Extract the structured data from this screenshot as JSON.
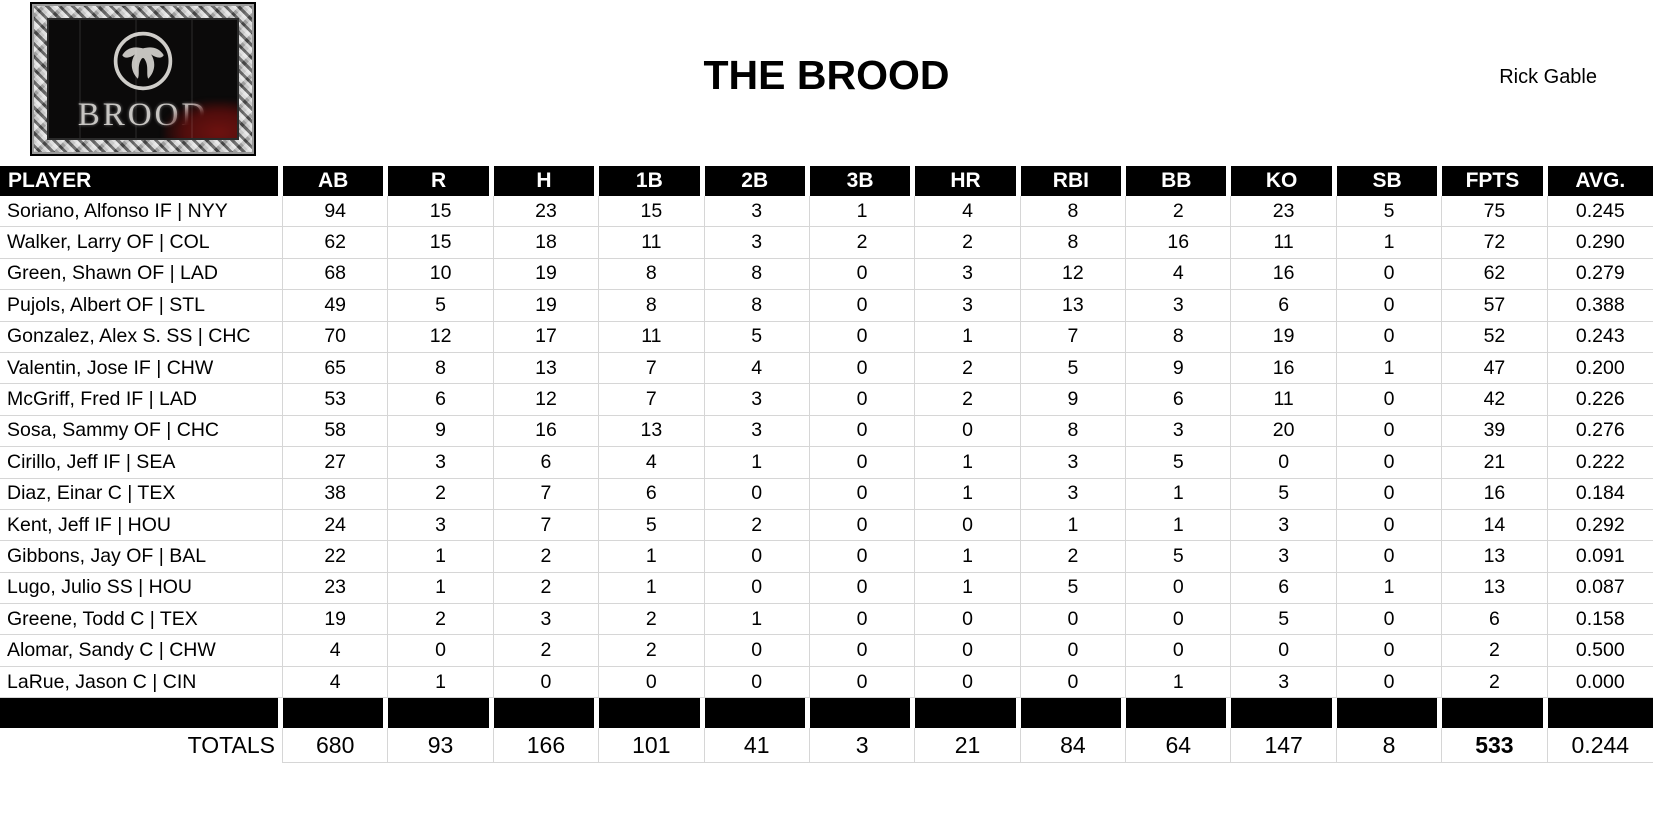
{
  "header": {
    "title": "THE BROOD",
    "owner": "Rick Gable"
  },
  "logo": {
    "label": "BROOD",
    "emblem_icon": "brood-claw-icon"
  },
  "table": {
    "columns": [
      "PLAYER",
      "AB",
      "R",
      "H",
      "1B",
      "2B",
      "3B",
      "HR",
      "RBI",
      "BB",
      "KO",
      "SB",
      "FPTS",
      "AVG."
    ],
    "rows": [
      {
        "player": "Soriano, Alfonso IF | NYY",
        "stats": [
          "94",
          "15",
          "23",
          "15",
          "3",
          "1",
          "4",
          "8",
          "2",
          "23",
          "5",
          "75",
          "0.245"
        ]
      },
      {
        "player": "Walker, Larry OF | COL",
        "stats": [
          "62",
          "15",
          "18",
          "11",
          "3",
          "2",
          "2",
          "8",
          "16",
          "11",
          "1",
          "72",
          "0.290"
        ]
      },
      {
        "player": "Green, Shawn OF | LAD",
        "stats": [
          "68",
          "10",
          "19",
          "8",
          "8",
          "0",
          "3",
          "12",
          "4",
          "16",
          "0",
          "62",
          "0.279"
        ]
      },
      {
        "player": "Pujols, Albert OF | STL",
        "stats": [
          "49",
          "5",
          "19",
          "8",
          "8",
          "0",
          "3",
          "13",
          "3",
          "6",
          "0",
          "57",
          "0.388"
        ]
      },
      {
        "player": "Gonzalez, Alex S. SS | CHC",
        "stats": [
          "70",
          "12",
          "17",
          "11",
          "5",
          "0",
          "1",
          "7",
          "8",
          "19",
          "0",
          "52",
          "0.243"
        ]
      },
      {
        "player": "Valentin, Jose IF | CHW",
        "stats": [
          "65",
          "8",
          "13",
          "7",
          "4",
          "0",
          "2",
          "5",
          "9",
          "16",
          "1",
          "47",
          "0.200"
        ]
      },
      {
        "player": "McGriff, Fred IF | LAD",
        "stats": [
          "53",
          "6",
          "12",
          "7",
          "3",
          "0",
          "2",
          "9",
          "6",
          "11",
          "0",
          "42",
          "0.226"
        ]
      },
      {
        "player": "Sosa, Sammy OF | CHC",
        "stats": [
          "58",
          "9",
          "16",
          "13",
          "3",
          "0",
          "0",
          "8",
          "3",
          "20",
          "0",
          "39",
          "0.276"
        ]
      },
      {
        "player": "Cirillo, Jeff IF | SEA",
        "stats": [
          "27",
          "3",
          "6",
          "4",
          "1",
          "0",
          "1",
          "3",
          "5",
          "0",
          "0",
          "21",
          "0.222"
        ]
      },
      {
        "player": "Diaz, Einar C | TEX",
        "stats": [
          "38",
          "2",
          "7",
          "6",
          "0",
          "0",
          "1",
          "3",
          "1",
          "5",
          "0",
          "16",
          "0.184"
        ]
      },
      {
        "player": "Kent, Jeff IF | HOU",
        "stats": [
          "24",
          "3",
          "7",
          "5",
          "2",
          "0",
          "0",
          "1",
          "1",
          "3",
          "0",
          "14",
          "0.292"
        ]
      },
      {
        "player": "Gibbons, Jay OF | BAL",
        "stats": [
          "22",
          "1",
          "2",
          "1",
          "0",
          "0",
          "1",
          "2",
          "5",
          "3",
          "0",
          "13",
          "0.091"
        ]
      },
      {
        "player": "Lugo, Julio SS | HOU",
        "stats": [
          "23",
          "1",
          "2",
          "1",
          "0",
          "0",
          "1",
          "5",
          "0",
          "6",
          "1",
          "13",
          "0.087"
        ]
      },
      {
        "player": "Greene, Todd C | TEX",
        "stats": [
          "19",
          "2",
          "3",
          "2",
          "1",
          "0",
          "0",
          "0",
          "0",
          "5",
          "0",
          "6",
          "0.158"
        ]
      },
      {
        "player": "Alomar, Sandy C | CHW",
        "stats": [
          "4",
          "0",
          "2",
          "2",
          "0",
          "0",
          "0",
          "0",
          "0",
          "0",
          "0",
          "2",
          "0.500"
        ]
      },
      {
        "player": "LaRue, Jason C | CIN",
        "stats": [
          "4",
          "1",
          "0",
          "0",
          "0",
          "0",
          "0",
          "0",
          "1",
          "3",
          "0",
          "2",
          "0.000"
        ]
      }
    ],
    "totals": {
      "label": "TOTALS",
      "values": [
        "680",
        "93",
        "166",
        "101",
        "41",
        "3",
        "21",
        "84",
        "64",
        "147",
        "8",
        "533",
        "0.244"
      ],
      "bold_column": "FPTS"
    }
  }
}
